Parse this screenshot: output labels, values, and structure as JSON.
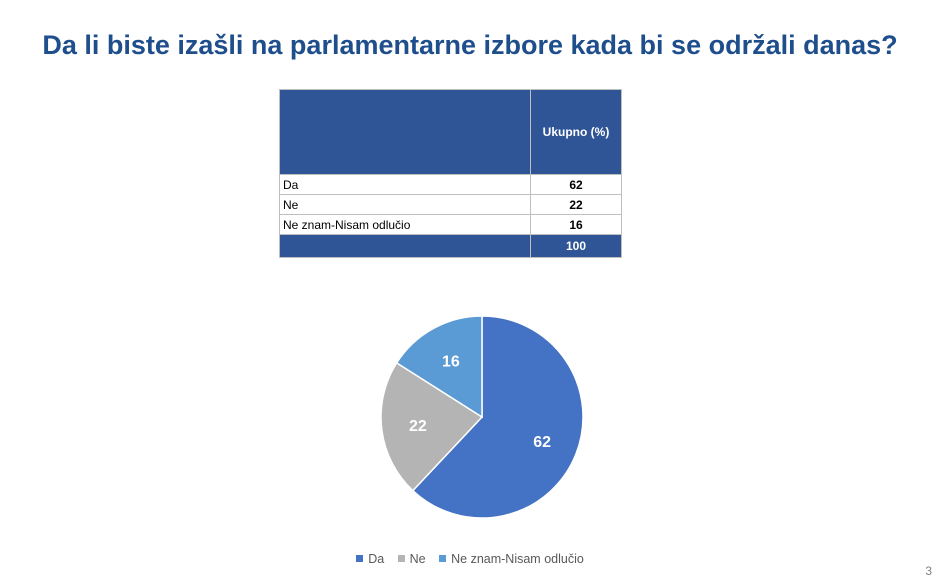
{
  "title": "Da li biste izašli na parlamentarne izbore kada bi se održali danas?",
  "table": {
    "column_header": "Ukupno (%)",
    "rows": [
      {
        "label": "Da",
        "value": "62"
      },
      {
        "label": "Ne",
        "value": "22"
      },
      {
        "label": "Ne znam-Nisam odlučio",
        "value": "16"
      }
    ],
    "total_label": "",
    "total_value": "100"
  },
  "chart_data": {
    "type": "pie",
    "categories": [
      "Da",
      "Ne",
      "Ne znam-Nisam odlučio"
    ],
    "values": [
      62,
      22,
      16
    ],
    "colors": [
      "#4472C4",
      "#B4B4B4",
      "#5B9BD5"
    ],
    "legend_position": "bottom",
    "title": ""
  },
  "page_number": "3"
}
